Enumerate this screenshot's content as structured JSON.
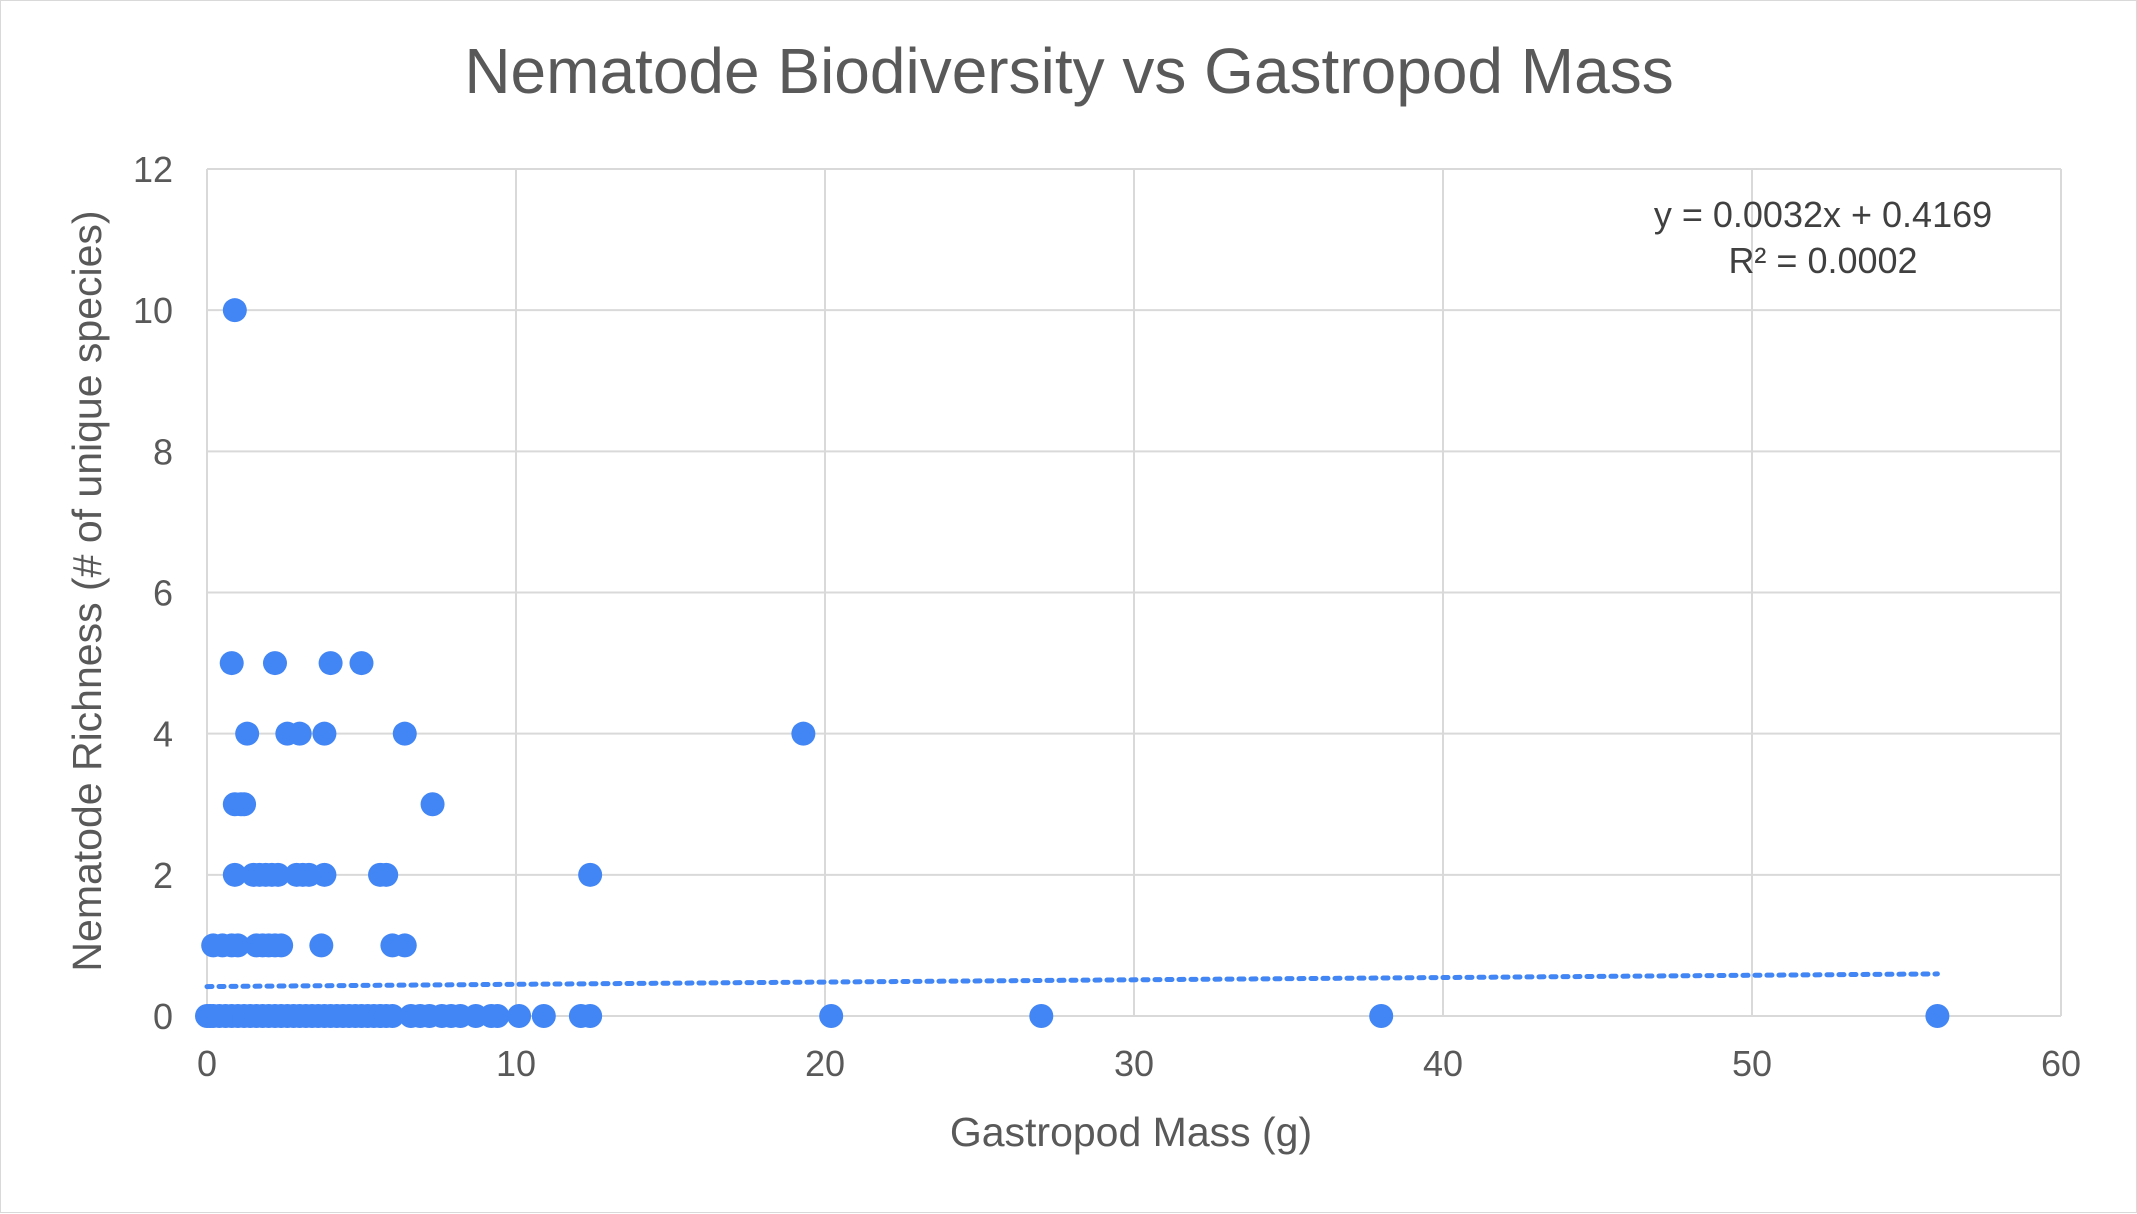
{
  "chart_data": {
    "type": "scatter",
    "title": "Nematode Biodiversity vs Gastropod Mass",
    "xlabel": "Gastropod Mass (g)",
    "ylabel": "Nematode Richness (# of unique species)",
    "xlim": [
      0,
      60
    ],
    "ylim": [
      0,
      12
    ],
    "xticks": [
      0,
      10,
      20,
      30,
      40,
      50,
      60
    ],
    "yticks": [
      0,
      2,
      4,
      6,
      8,
      10,
      12
    ],
    "grid": true,
    "legend": "none",
    "colors": {
      "points": "#4285f4",
      "trendline": "#4285f4",
      "grid": "#d9d9d9",
      "text": "#595959"
    },
    "trendline": {
      "type": "linear",
      "slope": 0.0032,
      "intercept": 0.4169,
      "x_range": [
        0,
        56
      ],
      "equation_label": "y = 0.0032x + 0.4169",
      "r2_label": "R² = 0.0002"
    },
    "series": [
      {
        "points": [
          [
            0.9,
            10
          ],
          [
            0.8,
            5
          ],
          [
            2.2,
            5
          ],
          [
            4.0,
            5
          ],
          [
            5.0,
            5
          ],
          [
            1.3,
            4
          ],
          [
            2.6,
            4
          ],
          [
            3.0,
            4
          ],
          [
            3.8,
            4
          ],
          [
            6.4,
            4
          ],
          [
            19.3,
            4
          ],
          [
            0.9,
            3
          ],
          [
            1.1,
            3
          ],
          [
            1.2,
            3
          ],
          [
            7.3,
            3
          ],
          [
            0.9,
            2
          ],
          [
            1.5,
            2
          ],
          [
            1.7,
            2
          ],
          [
            1.9,
            2
          ],
          [
            2.1,
            2
          ],
          [
            2.3,
            2
          ],
          [
            2.9,
            2
          ],
          [
            3.1,
            2
          ],
          [
            3.3,
            2
          ],
          [
            3.8,
            2
          ],
          [
            5.6,
            2
          ],
          [
            5.8,
            2
          ],
          [
            12.4,
            2
          ],
          [
            0.2,
            1
          ],
          [
            0.5,
            1
          ],
          [
            0.8,
            1
          ],
          [
            1.0,
            1
          ],
          [
            1.6,
            1
          ],
          [
            1.8,
            1
          ],
          [
            2.0,
            1
          ],
          [
            2.2,
            1
          ],
          [
            2.4,
            1
          ],
          [
            3.7,
            1
          ],
          [
            6.0,
            1
          ],
          [
            6.4,
            1
          ],
          [
            0.0,
            0
          ],
          [
            0.1,
            0
          ],
          [
            0.2,
            0
          ],
          [
            0.4,
            0
          ],
          [
            0.6,
            0
          ],
          [
            0.8,
            0
          ],
          [
            1.0,
            0
          ],
          [
            1.2,
            0
          ],
          [
            1.4,
            0
          ],
          [
            1.6,
            0
          ],
          [
            1.8,
            0
          ],
          [
            2.0,
            0
          ],
          [
            2.2,
            0
          ],
          [
            2.4,
            0
          ],
          [
            2.6,
            0
          ],
          [
            2.8,
            0
          ],
          [
            3.0,
            0
          ],
          [
            3.2,
            0
          ],
          [
            3.4,
            0
          ],
          [
            3.6,
            0
          ],
          [
            3.8,
            0
          ],
          [
            4.0,
            0
          ],
          [
            4.2,
            0
          ],
          [
            4.4,
            0
          ],
          [
            4.6,
            0
          ],
          [
            4.8,
            0
          ],
          [
            5.0,
            0
          ],
          [
            5.2,
            0
          ],
          [
            5.4,
            0
          ],
          [
            5.6,
            0
          ],
          [
            5.8,
            0
          ],
          [
            6.0,
            0
          ],
          [
            6.6,
            0
          ],
          [
            6.9,
            0
          ],
          [
            7.2,
            0
          ],
          [
            7.6,
            0
          ],
          [
            7.9,
            0
          ],
          [
            8.2,
            0
          ],
          [
            8.7,
            0
          ],
          [
            9.2,
            0
          ],
          [
            9.4,
            0
          ],
          [
            10.1,
            0
          ],
          [
            10.9,
            0
          ],
          [
            12.1,
            0
          ],
          [
            12.4,
            0
          ],
          [
            20.2,
            0
          ],
          [
            27.0,
            0
          ],
          [
            38.0,
            0
          ],
          [
            56.0,
            0
          ]
        ]
      }
    ]
  }
}
